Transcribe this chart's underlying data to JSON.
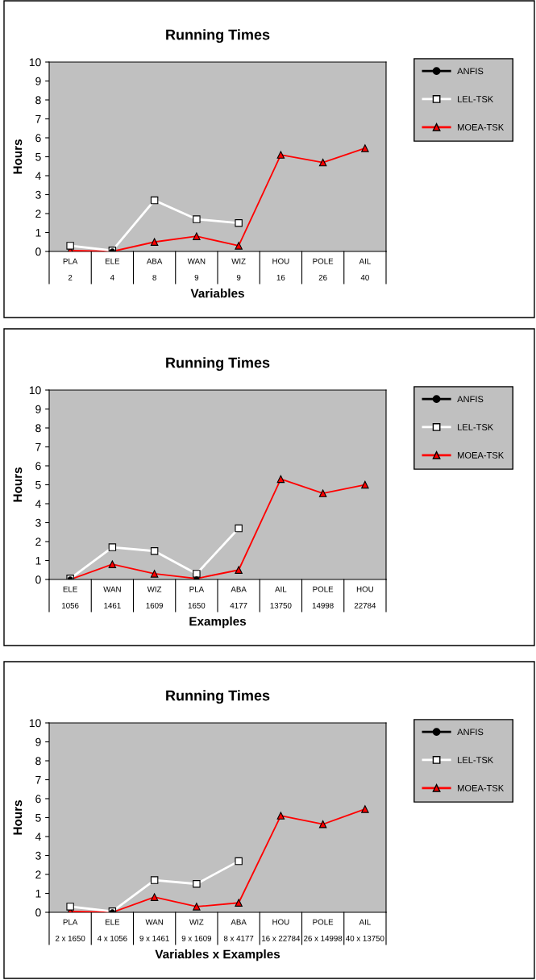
{
  "chart_data": [
    {
      "type": "line",
      "title": "Running Times",
      "xlabel": "Variables",
      "ylabel": "Hours",
      "categories": [
        "PLA\n2",
        "ELE\n4",
        "ABA\n8",
        "WAN\n9",
        "WIZ\n9",
        "HOU\n16",
        "POLE\n26",
        "AIL\n40"
      ],
      "ylim": [
        0,
        10
      ],
      "yticks": [
        0,
        1,
        2,
        3,
        4,
        5,
        6,
        7,
        8,
        9,
        10
      ],
      "grid": false,
      "legend": "right",
      "series": [
        {
          "name": "ANFIS",
          "color": "#000000",
          "marker": "circle",
          "values": [
            null,
            0,
            null,
            null,
            null,
            null,
            null,
            null
          ]
        },
        {
          "name": "LEL-TSK",
          "color": "#ffffff",
          "marker": "square",
          "values": [
            0.3,
            0.05,
            2.7,
            1.7,
            1.5,
            null,
            null,
            null
          ]
        },
        {
          "name": "MOEA-TSK",
          "color": "#ff0000",
          "marker": "triangle",
          "values": [
            0.05,
            0,
            0.5,
            0.8,
            0.3,
            5.1,
            4.7,
            5.45
          ]
        }
      ]
    },
    {
      "type": "line",
      "title": "Running Times",
      "xlabel": "Examples",
      "ylabel": "Hours",
      "categories": [
        "ELE\n1056",
        "WAN\n1461",
        "WIZ\n1609",
        "PLA\n1650",
        "ABA\n4177",
        "AIL\n13750",
        "POLE\n14998",
        "HOU\n22784"
      ],
      "ylim": [
        0,
        10
      ],
      "yticks": [
        0,
        1,
        2,
        3,
        4,
        5,
        6,
        7,
        8,
        9,
        10
      ],
      "grid": false,
      "legend": "right",
      "series": [
        {
          "name": "ANFIS",
          "color": "#000000",
          "marker": "circle",
          "values": [
            0,
            null,
            null,
            0,
            null,
            null,
            null,
            null
          ]
        },
        {
          "name": "LEL-TSK",
          "color": "#ffffff",
          "marker": "square",
          "values": [
            0.05,
            1.7,
            1.5,
            0.3,
            2.7,
            null,
            null,
            null
          ]
        },
        {
          "name": "MOEA-TSK",
          "color": "#ff0000",
          "marker": "triangle",
          "values": [
            0,
            0.8,
            0.3,
            0.05,
            0.5,
            5.3,
            4.55,
            5.0
          ]
        }
      ]
    },
    {
      "type": "line",
      "title": "Running Times",
      "xlabel": "Variables x Examples",
      "ylabel": "Hours",
      "categories": [
        "PLA\n2 x 1650",
        "ELE\n4 x 1056",
        "WAN\n9 x 1461",
        "WIZ\n9 x 1609",
        "ABA\n8 x 4177",
        "HOU\n16 x 22784",
        "POLE\n26 x 14998",
        "AIL\n40 x 13750"
      ],
      "ylim": [
        0,
        10
      ],
      "yticks": [
        0,
        1,
        2,
        3,
        4,
        5,
        6,
        7,
        8,
        9,
        10
      ],
      "grid": false,
      "legend": "right",
      "series": [
        {
          "name": "ANFIS",
          "color": "#000000",
          "marker": "circle",
          "values": [
            null,
            0,
            null,
            null,
            null,
            null,
            null,
            null
          ]
        },
        {
          "name": "LEL-TSK",
          "color": "#ffffff",
          "marker": "square",
          "values": [
            0.3,
            0.05,
            1.7,
            1.5,
            2.7,
            null,
            null,
            null
          ]
        },
        {
          "name": "MOEA-TSK",
          "color": "#ff0000",
          "marker": "triangle",
          "values": [
            0.05,
            0,
            0.8,
            0.3,
            0.5,
            5.1,
            4.65,
            5.45
          ]
        }
      ]
    }
  ]
}
